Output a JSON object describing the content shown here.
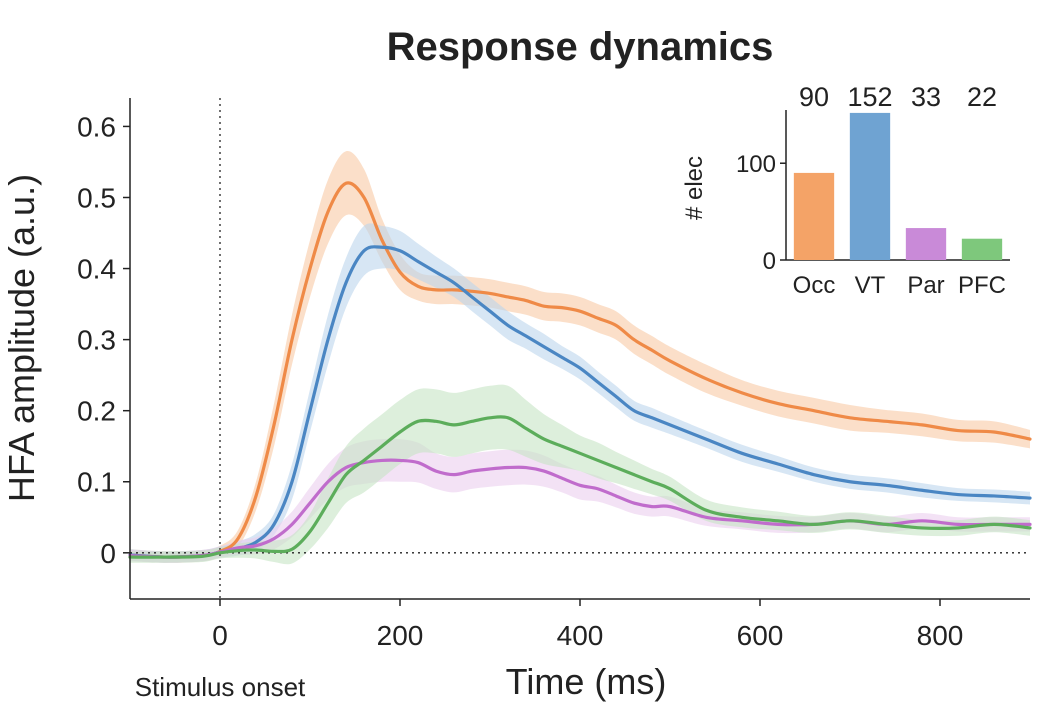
{
  "chart_data": [
    {
      "type": "line",
      "title": "Response dynamics",
      "xlabel": "Time (ms)",
      "ylabel": "HFA amplitude (a.u.)",
      "xlim": [
        -100,
        900
      ],
      "ylim": [
        -0.065,
        0.64
      ],
      "xticks": [
        0,
        200,
        400,
        600,
        800
      ],
      "xtick_labels": [
        "0",
        "200",
        "400",
        "600",
        "800"
      ],
      "yticks": [
        0,
        0.1,
        0.2,
        0.3,
        0.4,
        0.5,
        0.6
      ],
      "ytick_labels": [
        "0",
        "0.1",
        "0.2",
        "0.3",
        "0.4",
        "0.5",
        "0.6"
      ],
      "annotation": "Stimulus onset",
      "reference_lines": [
        {
          "orientation": "vertical",
          "value": 0,
          "style": "dotted"
        },
        {
          "orientation": "horizontal",
          "value": 0,
          "style": "dotted"
        }
      ],
      "series": [
        {
          "name": "Occ",
          "color": "#ef8a47",
          "band_color": "#f9c9a5",
          "x": [
            -100,
            -60,
            -20,
            0,
            20,
            40,
            60,
            80,
            100,
            120,
            140,
            160,
            180,
            200,
            220,
            240,
            260,
            280,
            300,
            320,
            340,
            360,
            380,
            400,
            420,
            440,
            460,
            480,
            500,
            540,
            580,
            620,
            660,
            700,
            740,
            780,
            820,
            860,
            900
          ],
          "y": [
            -0.003,
            -0.006,
            -0.004,
            0.002,
            0.02,
            0.08,
            0.18,
            0.3,
            0.4,
            0.48,
            0.52,
            0.5,
            0.44,
            0.395,
            0.375,
            0.37,
            0.37,
            0.368,
            0.365,
            0.36,
            0.355,
            0.347,
            0.345,
            0.34,
            0.33,
            0.32,
            0.3,
            0.285,
            0.27,
            0.245,
            0.225,
            0.21,
            0.2,
            0.19,
            0.185,
            0.18,
            0.172,
            0.17,
            0.16
          ],
          "err": [
            0.008,
            0.008,
            0.008,
            0.008,
            0.012,
            0.02,
            0.03,
            0.035,
            0.04,
            0.045,
            0.045,
            0.04,
            0.03,
            0.025,
            0.02,
            0.02,
            0.02,
            0.02,
            0.02,
            0.02,
            0.02,
            0.02,
            0.02,
            0.02,
            0.02,
            0.02,
            0.02,
            0.02,
            0.02,
            0.02,
            0.018,
            0.018,
            0.018,
            0.018,
            0.016,
            0.016,
            0.015,
            0.015,
            0.013
          ]
        },
        {
          "name": "VT",
          "color": "#4a86c3",
          "band_color": "#bcd5ec",
          "x": [
            -100,
            -60,
            -20,
            0,
            20,
            40,
            60,
            80,
            100,
            120,
            140,
            160,
            180,
            200,
            220,
            240,
            260,
            280,
            300,
            320,
            340,
            360,
            380,
            400,
            420,
            440,
            460,
            480,
            500,
            540,
            580,
            620,
            660,
            700,
            740,
            780,
            820,
            860,
            900
          ],
          "y": [
            -0.003,
            -0.006,
            -0.004,
            0.001,
            0.006,
            0.015,
            0.04,
            0.1,
            0.2,
            0.3,
            0.38,
            0.425,
            0.43,
            0.425,
            0.41,
            0.395,
            0.38,
            0.36,
            0.34,
            0.32,
            0.305,
            0.29,
            0.275,
            0.26,
            0.24,
            0.22,
            0.2,
            0.19,
            0.18,
            0.16,
            0.14,
            0.125,
            0.11,
            0.1,
            0.095,
            0.088,
            0.082,
            0.08,
            0.077
          ],
          "err": [
            0.008,
            0.008,
            0.008,
            0.008,
            0.01,
            0.012,
            0.015,
            0.025,
            0.03,
            0.035,
            0.035,
            0.035,
            0.03,
            0.028,
            0.025,
            0.022,
            0.02,
            0.02,
            0.02,
            0.02,
            0.018,
            0.018,
            0.016,
            0.016,
            0.015,
            0.015,
            0.014,
            0.014,
            0.013,
            0.012,
            0.012,
            0.011,
            0.01,
            0.01,
            0.01,
            0.01,
            0.009,
            0.009,
            0.009
          ]
        },
        {
          "name": "Par",
          "color": "#c06ccc",
          "band_color": "#ebcfef",
          "x": [
            -100,
            -60,
            -20,
            0,
            20,
            40,
            60,
            80,
            100,
            120,
            140,
            160,
            180,
            200,
            220,
            240,
            260,
            280,
            300,
            320,
            340,
            360,
            380,
            400,
            420,
            440,
            460,
            480,
            500,
            540,
            580,
            620,
            660,
            700,
            740,
            780,
            820,
            860,
            900
          ],
          "y": [
            -0.004,
            -0.006,
            -0.004,
            0.001,
            0.007,
            0.01,
            0.02,
            0.04,
            0.07,
            0.1,
            0.12,
            0.127,
            0.13,
            0.13,
            0.127,
            0.115,
            0.11,
            0.115,
            0.118,
            0.12,
            0.12,
            0.115,
            0.105,
            0.095,
            0.09,
            0.08,
            0.07,
            0.065,
            0.065,
            0.05,
            0.045,
            0.04,
            0.04,
            0.045,
            0.04,
            0.045,
            0.04,
            0.04,
            0.04
          ],
          "err": [
            0.008,
            0.008,
            0.008,
            0.008,
            0.01,
            0.012,
            0.015,
            0.018,
            0.022,
            0.025,
            0.028,
            0.03,
            0.03,
            0.03,
            0.028,
            0.025,
            0.025,
            0.025,
            0.025,
            0.025,
            0.024,
            0.022,
            0.02,
            0.02,
            0.018,
            0.016,
            0.015,
            0.014,
            0.014,
            0.012,
            0.012,
            0.012,
            0.011,
            0.011,
            0.011,
            0.011,
            0.01,
            0.01,
            0.01
          ]
        },
        {
          "name": "PFC",
          "color": "#5cad5b",
          "band_color": "#c6e4c4",
          "x": [
            -100,
            -60,
            -20,
            0,
            20,
            40,
            60,
            80,
            100,
            120,
            140,
            160,
            180,
            200,
            220,
            240,
            260,
            280,
            300,
            320,
            340,
            360,
            380,
            400,
            420,
            440,
            460,
            480,
            500,
            540,
            580,
            620,
            660,
            700,
            740,
            780,
            820,
            860,
            900
          ],
          "y": [
            -0.006,
            -0.006,
            -0.005,
            0.0,
            0.003,
            0.004,
            0.002,
            0.005,
            0.03,
            0.07,
            0.11,
            0.13,
            0.15,
            0.17,
            0.185,
            0.185,
            0.18,
            0.185,
            0.19,
            0.19,
            0.175,
            0.16,
            0.15,
            0.14,
            0.13,
            0.12,
            0.11,
            0.1,
            0.09,
            0.06,
            0.05,
            0.045,
            0.04,
            0.045,
            0.04,
            0.035,
            0.035,
            0.04,
            0.035
          ],
          "err": [
            0.008,
            0.008,
            0.008,
            0.008,
            0.01,
            0.012,
            0.015,
            0.02,
            0.025,
            0.035,
            0.04,
            0.045,
            0.045,
            0.045,
            0.045,
            0.045,
            0.045,
            0.045,
            0.045,
            0.045,
            0.04,
            0.035,
            0.03,
            0.025,
            0.025,
            0.022,
            0.02,
            0.018,
            0.017,
            0.015,
            0.014,
            0.013,
            0.012,
            0.012,
            0.012,
            0.011,
            0.011,
            0.011,
            0.011
          ]
        }
      ]
    },
    {
      "type": "bar",
      "title": "",
      "ylabel": "# elec",
      "categories": [
        "Occ",
        "VT",
        "Par",
        "PFC"
      ],
      "values": [
        90,
        152,
        33,
        22
      ],
      "value_labels": [
        "90",
        "152",
        "33",
        "22"
      ],
      "colors": [
        "#f4a367",
        "#6fa3d2",
        "#c98ad8",
        "#7ec87c"
      ],
      "ylim": [
        0,
        155
      ],
      "yticks": [
        0,
        100
      ],
      "ytick_labels": [
        "0",
        "100"
      ]
    }
  ]
}
